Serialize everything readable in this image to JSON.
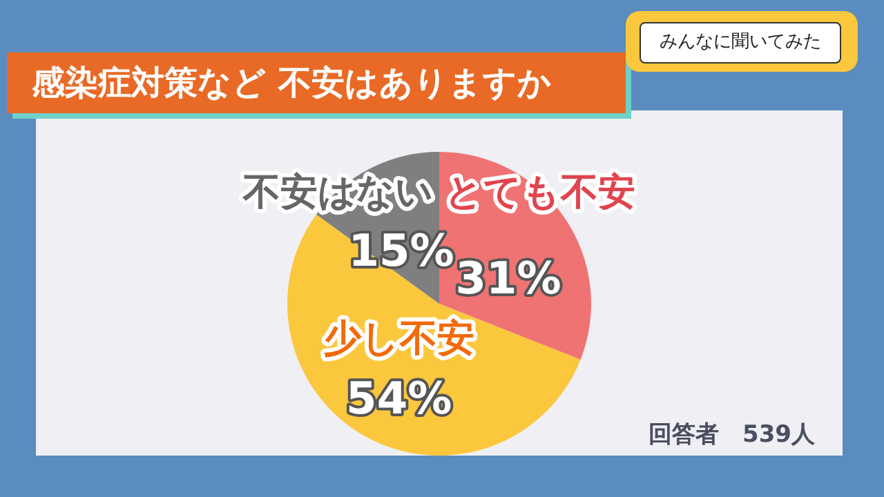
{
  "chart_data": {
    "type": "pie",
    "title": "感染症対策など 不安はありますか",
    "subtitle": "みんなに聞いてみた",
    "categories": [
      "とても不安",
      "少し不安",
      "不安はない"
    ],
    "values": [
      31,
      54,
      15
    ],
    "colors": [
      "#f07373",
      "#fbc73d",
      "#7f7f7f"
    ],
    "value_labels": [
      "31%",
      "54%",
      "15%"
    ],
    "annotations": [
      "回答者　539人"
    ]
  }
}
